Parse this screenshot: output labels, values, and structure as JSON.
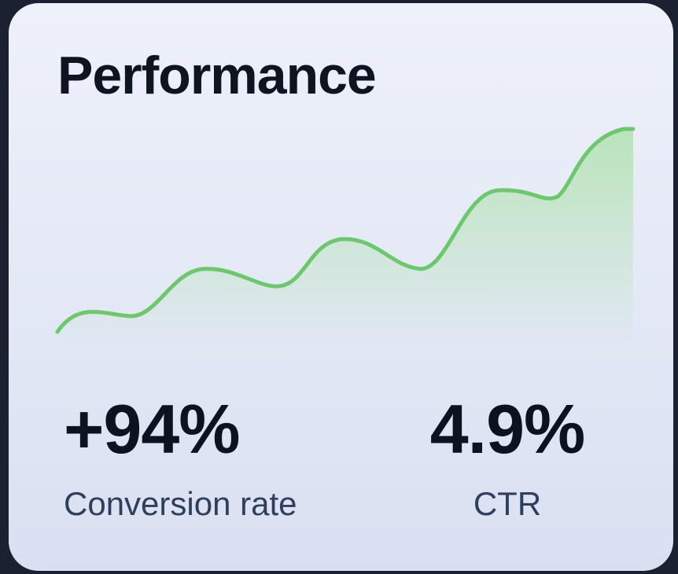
{
  "card": {
    "title": "Performance"
  },
  "sparkline": {
    "stroke_color": "#6cc96b",
    "fill_color": "#a9e0a6"
  },
  "metrics": [
    {
      "value": "+94%",
      "label": "Conversion rate"
    },
    {
      "value": "4.9%",
      "label": "CTR"
    }
  ]
}
